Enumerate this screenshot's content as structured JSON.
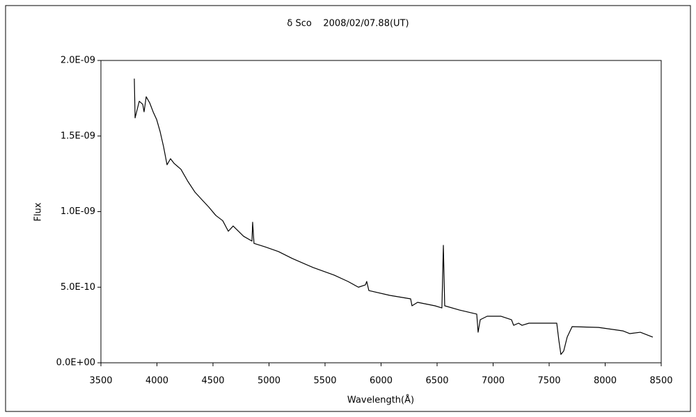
{
  "chart_data": {
    "type": "line",
    "title": "δ Sco    2008/02/07.88(UT)",
    "x_label": "Wavelength(Å)",
    "y_label": "Flux",
    "x": [
      3798,
      3805,
      3842,
      3873,
      3885,
      3904,
      3935,
      3966,
      3997,
      4028,
      4059,
      4090,
      4121,
      4152,
      4214,
      4276,
      4338,
      4400,
      4463,
      4525,
      4587,
      4637,
      4680,
      4773,
      4848,
      4854,
      4866,
      4960,
      5084,
      5208,
      5394,
      5581,
      5705,
      5798,
      5860,
      5872,
      5891,
      6078,
      6264,
      6276,
      6326,
      6481,
      6543,
      6556,
      6568,
      6699,
      6854,
      6866,
      6885,
      6947,
      7071,
      7164,
      7183,
      7227,
      7258,
      7320,
      7568,
      7587,
      7605,
      7630,
      7661,
      7705,
      7941,
      8158,
      8220,
      8314,
      8425
    ],
    "values": [
      1.88e-09,
      1.62e-09,
      1.73e-09,
      1.71e-09,
      1.66e-09,
      1.76e-09,
      1.72e-09,
      1.66e-09,
      1.61e-09,
      1.53e-09,
      1.43e-09,
      1.31e-09,
      1.35e-09,
      1.32e-09,
      1.28e-09,
      1.2e-09,
      1.13e-09,
      1.08e-09,
      1.03e-09,
      9.75e-10,
      9.4e-10,
      8.7e-10,
      9.05e-10,
      8.37e-10,
      8.05e-10,
      9.3e-10,
      7.9e-10,
      7.68e-10,
      7.36e-10,
      6.9e-10,
      6.3e-10,
      5.8e-10,
      5.38e-10,
      5e-10,
      5.15e-10,
      5.38e-10,
      4.78e-10,
      4.46e-10,
      4.23e-10,
      3.77e-10,
      4e-10,
      3.77e-10,
      3.63e-10,
      7.77e-10,
      3.77e-10,
      3.49e-10,
      3.22e-10,
      2.02e-10,
      2.85e-10,
      3.08e-10,
      3.08e-10,
      2.85e-10,
      2.48e-10,
      2.62e-10,
      2.48e-10,
      2.62e-10,
      2.62e-10,
      1.47e-10,
      5.5e-11,
      7.8e-11,
      1.7e-10,
      2.39e-10,
      2.34e-10,
      2.11e-10,
      1.93e-10,
      2.02e-10,
      1.7e-10
    ],
    "color": "#000000",
    "xlim": [
      3500,
      8500
    ],
    "xticks": [
      3500,
      4000,
      4500,
      5000,
      5500,
      6000,
      6500,
      7000,
      7500,
      8000,
      8500
    ],
    "ylim": [
      0,
      2e-09
    ],
    "yticks": [
      {
        "value": 0,
        "label": "0.0E+00"
      },
      {
        "value": 5e-10,
        "label": "5.0E-10"
      },
      {
        "value": 1e-09,
        "label": "1.0E-09"
      },
      {
        "value": 1.5e-09,
        "label": "1.5E-09"
      },
      {
        "value": 2e-09,
        "label": "2.0E-09"
      }
    ],
    "grid": false
  }
}
